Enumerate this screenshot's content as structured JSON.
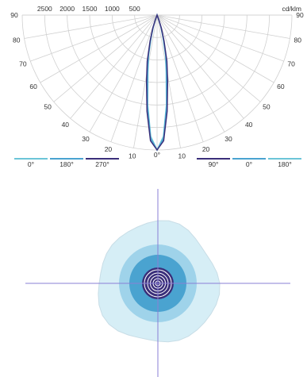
{
  "polar_diagram": {
    "unit": "cd/klm",
    "intensity_labels": [
      "2500",
      "2000",
      "1500",
      "1000",
      "500"
    ],
    "angle_labels_left": [
      "90",
      "80",
      "70",
      "60",
      "50",
      "40",
      "30",
      "20",
      "10"
    ],
    "angle_labels_right": [
      "90",
      "80",
      "70",
      "60",
      "50",
      "40",
      "30",
      "20",
      "10"
    ],
    "center_label": "0°",
    "legend_left": [
      {
        "label": "0°",
        "color": "#6cc5d8"
      },
      {
        "label": "180°",
        "color": "#4aa3d0"
      },
      {
        "label": "270°",
        "color": "#3a2f7a"
      }
    ],
    "legend_right": [
      {
        "label": "90°",
        "color": "#3a2f7a"
      },
      {
        "label": "0°",
        "color": "#4aa3d0"
      },
      {
        "label": "180°",
        "color": "#6cc5d8"
      }
    ]
  },
  "chart_data": {
    "type": "polar",
    "unit": "cd/klm",
    "series": [
      {
        "name": "0°",
        "color": "#6cc5d8",
        "points": [
          [
            0,
            3000
          ],
          [
            3,
            2700
          ],
          [
            6,
            2000
          ],
          [
            9,
            1300
          ],
          [
            12,
            900
          ],
          [
            15,
            500
          ],
          [
            18,
            250
          ],
          [
            20,
            100
          ],
          [
            22,
            0
          ]
        ]
      },
      {
        "name": "180°",
        "color": "#4aa3d0",
        "points": [
          [
            0,
            3000
          ],
          [
            3,
            2750
          ],
          [
            6,
            2050
          ],
          [
            9,
            1350
          ],
          [
            12,
            950
          ],
          [
            15,
            550
          ],
          [
            18,
            280
          ],
          [
            20,
            120
          ],
          [
            22,
            0
          ]
        ]
      },
      {
        "name": "270°",
        "color": "#3a2f7a",
        "points": [
          [
            0,
            3000
          ],
          [
            3,
            2800
          ],
          [
            6,
            2150
          ],
          [
            9,
            1500
          ],
          [
            12,
            1050
          ],
          [
            15,
            600
          ],
          [
            18,
            300
          ],
          [
            20,
            130
          ],
          [
            22,
            0
          ]
        ]
      }
    ]
  },
  "isolux": {
    "fill_colors": [
      "#d6eef6",
      "#9fd3ea",
      "#4aa3d0",
      "#3a2f7a",
      "#ffffff"
    ],
    "axis_color": "#8a7fd6"
  }
}
